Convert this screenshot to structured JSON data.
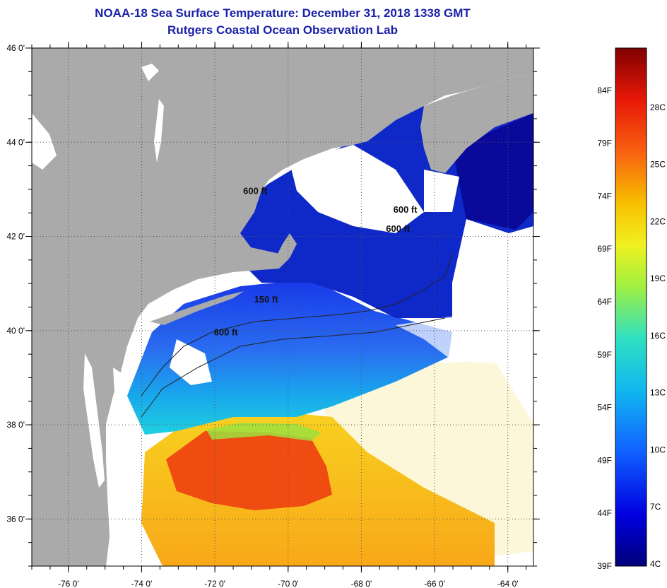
{
  "header": {
    "title": "NOAA-18 Sea Surface Temperature:  December 31, 2018 1338 GMT",
    "subtitle": "Rutgers Coastal Ocean Observation Lab"
  },
  "map": {
    "lon_range": [
      -77,
      -63.3
    ],
    "lat_range": [
      35,
      46
    ],
    "lon_ticks": [
      {
        "value": -76,
        "label": "-76 0'"
      },
      {
        "value": -74,
        "label": "-74 0'"
      },
      {
        "value": -72,
        "label": "-72 0'"
      },
      {
        "value": -70,
        "label": "-70 0'"
      },
      {
        "value": -68,
        "label": "-68 0'"
      },
      {
        "value": -66,
        "label": "-66 0'"
      },
      {
        "value": -64,
        "label": "-64 0'"
      }
    ],
    "lat_ticks": [
      {
        "value": 36,
        "label": "36 0'"
      },
      {
        "value": 38,
        "label": "38 0'"
      },
      {
        "value": 40,
        "label": "40 0'"
      },
      {
        "value": 42,
        "label": "42 0'"
      },
      {
        "value": 44,
        "label": "44 0'"
      },
      {
        "value": 46,
        "label": "46 0'"
      }
    ],
    "contour_labels": [
      {
        "text": "600 ft",
        "lon": -70.9,
        "lat": 42.9
      },
      {
        "text": "600 ft",
        "lon": -66.8,
        "lat": 42.5
      },
      {
        "text": "600 ft",
        "lon": -67.0,
        "lat": 42.1
      },
      {
        "text": "150 ft",
        "lon": -70.6,
        "lat": 40.6
      },
      {
        "text": "600 ft",
        "lon": -71.7,
        "lat": 39.9
      }
    ],
    "colors": {
      "land": "#aaaaaa",
      "no_data": "#ffffff",
      "cold": "#0a0a9a",
      "warm": "#e83010"
    }
  },
  "colorbar": {
    "range_f": [
      39,
      88
    ],
    "fahrenheit_labels": [
      "84F",
      "79F",
      "74F",
      "69F",
      "64F",
      "59F",
      "54F",
      "49F",
      "44F",
      "39F"
    ],
    "celsius_labels": [
      "28C",
      "25C",
      "22C",
      "19C",
      "16C",
      "13C",
      "10C",
      "7C",
      "4C"
    ]
  }
}
